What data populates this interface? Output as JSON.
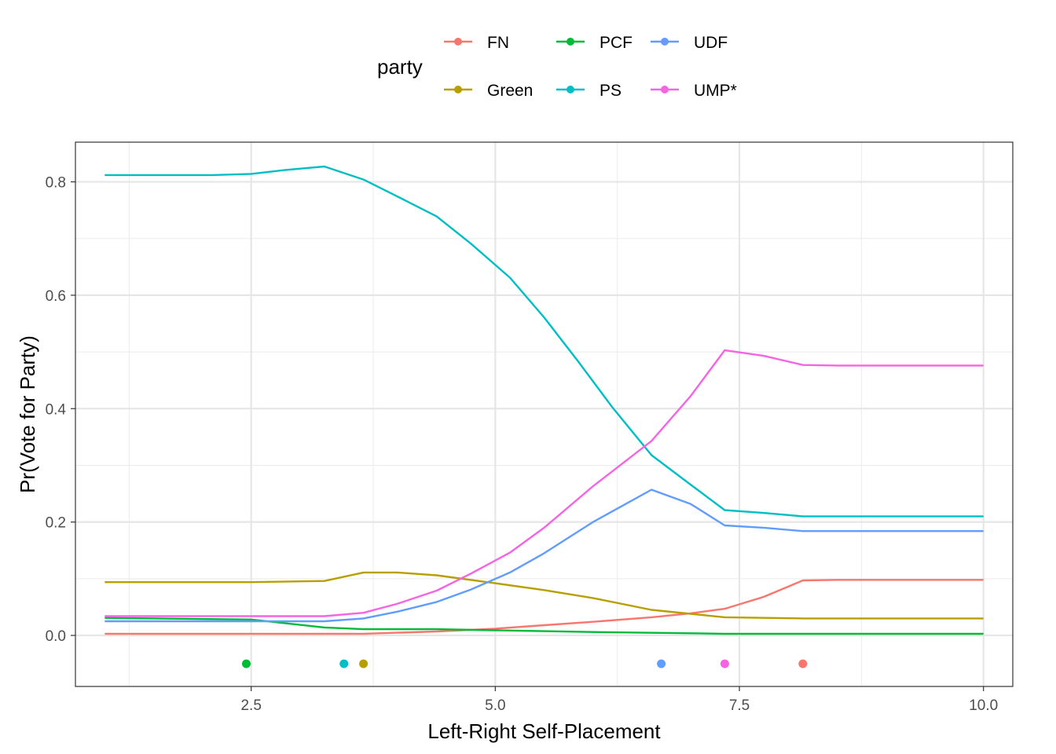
{
  "chart_data": {
    "type": "line",
    "xlabel": "Left-Right Self-Placement",
    "ylabel": "Pr(Vote for Party)",
    "xlim": [
      0.7,
      10.3
    ],
    "ylim": [
      -0.09,
      0.87
    ],
    "x_ticks": [
      2.5,
      5.0,
      7.5,
      10.0
    ],
    "x_tick_labels": [
      "2.5",
      "5.0",
      "7.5",
      "10.0"
    ],
    "y_ticks": [
      0.0,
      0.2,
      0.4,
      0.6,
      0.8
    ],
    "y_tick_labels": [
      "0.0",
      "0.2",
      "0.4",
      "0.6",
      "0.8"
    ],
    "grid": true,
    "legend": {
      "title": "party",
      "position": "top",
      "entries": [
        "FN",
        "PCF",
        "UDF",
        "Green",
        "PS",
        "UMP*"
      ]
    },
    "series": [
      {
        "name": "FN",
        "color": "#F8766D",
        "x": [
          1.0,
          3.0,
          3.65,
          4.4,
          5.0,
          5.5,
          6.0,
          6.6,
          7.0,
          7.35,
          7.75,
          8.15,
          8.5,
          9.0,
          10.0
        ],
        "y": [
          0.003,
          0.003,
          0.003,
          0.007,
          0.012,
          0.018,
          0.024,
          0.032,
          0.039,
          0.047,
          0.068,
          0.097,
          0.098,
          0.098,
          0.098
        ]
      },
      {
        "name": "Green",
        "color": "#B79F00",
        "x": [
          1.0,
          2.5,
          3.25,
          3.65,
          4.0,
          4.4,
          5.0,
          5.5,
          6.0,
          6.6,
          7.35,
          8.15,
          10.0
        ],
        "y": [
          0.094,
          0.094,
          0.096,
          0.111,
          0.111,
          0.106,
          0.092,
          0.08,
          0.066,
          0.045,
          0.032,
          0.03,
          0.03
        ]
      },
      {
        "name": "PCF",
        "color": "#00BA38",
        "x": [
          1.0,
          2.5,
          3.25,
          3.65,
          4.4,
          5.0,
          6.0,
          7.35,
          10.0
        ],
        "y": [
          0.031,
          0.028,
          0.014,
          0.011,
          0.011,
          0.009,
          0.006,
          0.003,
          0.003
        ]
      },
      {
        "name": "PS",
        "color": "#00BFC4",
        "x": [
          1.0,
          2.1,
          2.5,
          2.85,
          3.25,
          3.65,
          4.0,
          4.4,
          4.75,
          5.15,
          5.5,
          5.85,
          6.2,
          6.6,
          7.0,
          7.35,
          7.75,
          8.15,
          10.0
        ],
        "y": [
          0.812,
          0.812,
          0.814,
          0.821,
          0.827,
          0.804,
          0.774,
          0.739,
          0.691,
          0.631,
          0.561,
          0.483,
          0.402,
          0.318,
          0.266,
          0.221,
          0.216,
          0.21,
          0.21
        ]
      },
      {
        "name": "UDF",
        "color": "#619CFF",
        "x": [
          1.0,
          3.25,
          3.65,
          4.0,
          4.4,
          4.75,
          5.15,
          5.5,
          6.0,
          6.6,
          7.0,
          7.35,
          7.75,
          8.15,
          10.0
        ],
        "y": [
          0.025,
          0.025,
          0.03,
          0.042,
          0.059,
          0.081,
          0.111,
          0.145,
          0.2,
          0.257,
          0.232,
          0.194,
          0.19,
          0.184,
          0.184
        ]
      },
      {
        "name": "UMP*",
        "color": "#F564E3",
        "x": [
          1.0,
          3.25,
          3.65,
          4.0,
          4.4,
          4.75,
          5.15,
          5.5,
          6.0,
          6.6,
          7.0,
          7.35,
          7.75,
          8.15,
          8.5,
          10.0
        ],
        "y": [
          0.034,
          0.034,
          0.04,
          0.056,
          0.079,
          0.109,
          0.146,
          0.19,
          0.263,
          0.343,
          0.422,
          0.503,
          0.493,
          0.477,
          0.476,
          0.476
        ]
      }
    ],
    "party_positions": [
      {
        "party": "PCF",
        "x": 2.45,
        "y": -0.05,
        "color": "#00BA38"
      },
      {
        "party": "PS",
        "x": 3.45,
        "y": -0.05,
        "color": "#00BFC4"
      },
      {
        "party": "Green",
        "x": 3.65,
        "y": -0.05,
        "color": "#B79F00"
      },
      {
        "party": "UDF",
        "x": 6.7,
        "y": -0.05,
        "color": "#619CFF"
      },
      {
        "party": "UMP*",
        "x": 7.35,
        "y": -0.05,
        "color": "#F564E3"
      },
      {
        "party": "FN",
        "x": 8.15,
        "y": -0.05,
        "color": "#F8766D"
      }
    ]
  }
}
